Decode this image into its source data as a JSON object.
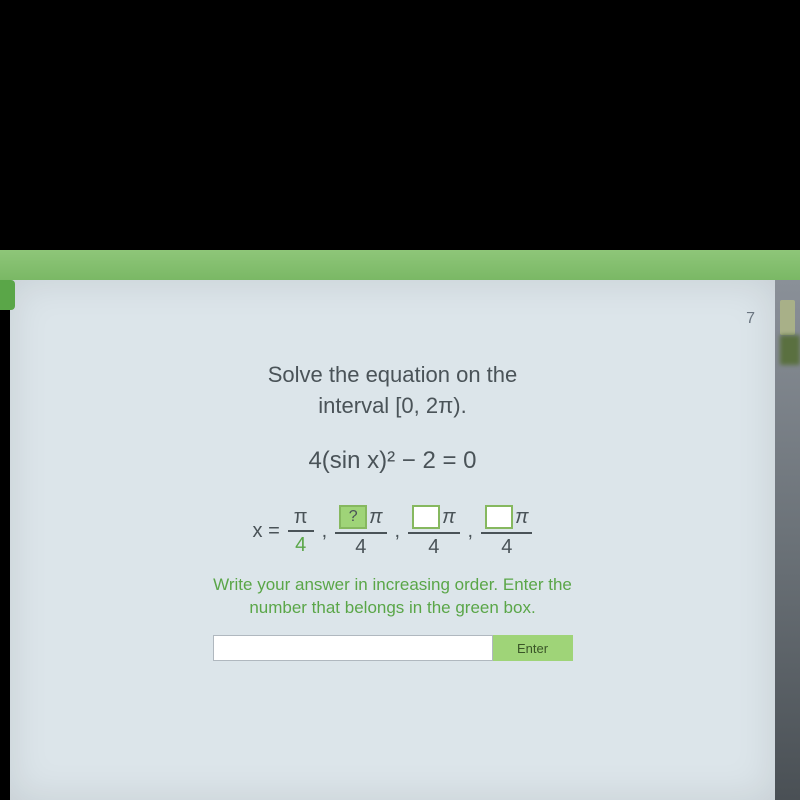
{
  "tab": {
    "label": ""
  },
  "pageNumber": "7",
  "problem": {
    "line1": "Solve the equation on the",
    "line2": "interval [0, 2π)."
  },
  "equation": "4(sin x)² − 2 = 0",
  "solution": {
    "prefix": "x =",
    "firstNum": "π",
    "firstDen": "4",
    "box1": "?",
    "pi": "π",
    "den": "4",
    "comma": ","
  },
  "answerBoxes": {
    "box1": {
      "value": "?",
      "highlighted": true
    },
    "box2": {
      "value": "",
      "highlighted": false
    },
    "box3": {
      "value": "",
      "highlighted": false
    }
  },
  "instruction": {
    "line1": "Write your answer in increasing order. Enter the",
    "line2": "number that belongs in the green box."
  },
  "enterButton": "Enter",
  "colors": {
    "background": "#dce5ea",
    "tabBar": "#8ec679",
    "text": "#4a5358",
    "accent": "#5aa648",
    "boxGreen": "#9fd478",
    "boxBorder": "#86b85f"
  }
}
